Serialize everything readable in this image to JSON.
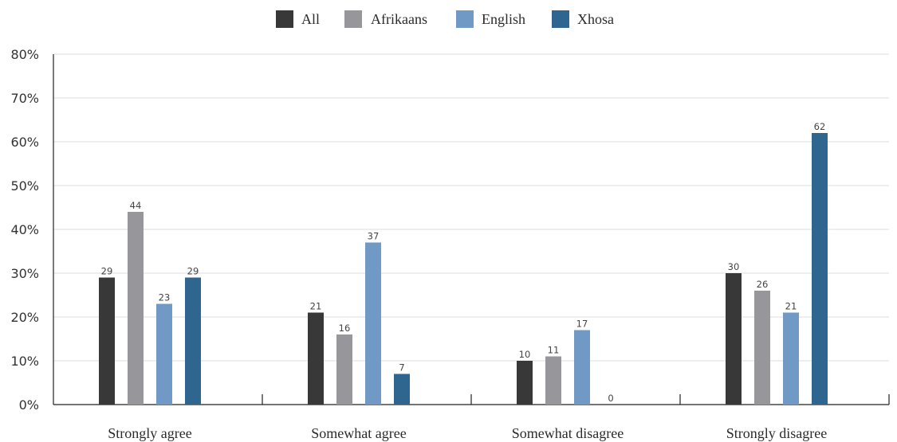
{
  "chart_data": {
    "type": "bar",
    "categories": [
      "Strongly agree",
      "Somewhat agree",
      "Somewhat disagree",
      "Strongly disagree"
    ],
    "series": [
      {
        "name": "All",
        "values": [
          29,
          21,
          10,
          30
        ],
        "color": "#383838"
      },
      {
        "name": "Afrikaans",
        "values": [
          44,
          16,
          11,
          26
        ],
        "color": "#97979b"
      },
      {
        "name": "English",
        "values": [
          23,
          37,
          17,
          21
        ],
        "color": "#7199c5"
      },
      {
        "name": "Xhosa",
        "values": [
          29,
          7,
          0,
          62
        ],
        "color": "#2e6690"
      }
    ],
    "title": "",
    "xlabel": "",
    "ylabel": "",
    "ylim": [
      0,
      80
    ],
    "y_ticks": [
      "0%",
      "10%",
      "20%",
      "30%",
      "40%",
      "50%",
      "60%",
      "70%",
      "80%"
    ],
    "grid": true,
    "legend_position": "top-center",
    "show_value_labels": true
  }
}
